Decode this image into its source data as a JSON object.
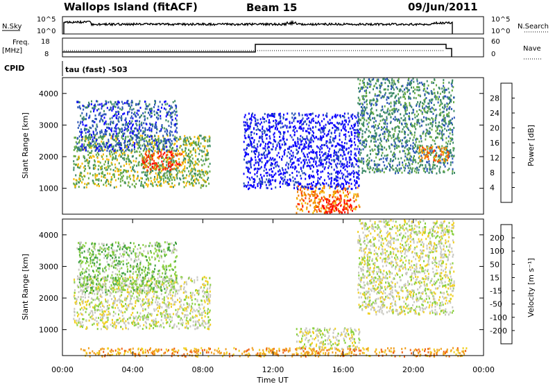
{
  "header": {
    "station": "Wallops Island (fitACF)",
    "beam": "Beam 15",
    "date": "09/Jun/2011"
  },
  "params": {
    "nsky_label": "N.Sky",
    "nsearch_label": "N.Search",
    "nsky_ticks": [
      "10^5",
      "10^0"
    ],
    "nsearch_ticks": [
      "10^5",
      "10^0"
    ],
    "freq_label_top": "Freq.",
    "freq_label_unit": "[MHz]",
    "freq_ticks": [
      "18",
      "8"
    ],
    "nave_label": "Nave",
    "nave_ticks": [
      "60",
      "0"
    ],
    "cpid_label": "CPID",
    "cpid_text": "tau (fast)  -503"
  },
  "colors": {
    "power": [
      "#0a00ff",
      "#2a55b5",
      "#3d8a66",
      "#66aa44",
      "#f5b800",
      "#f08000",
      "#ff3000",
      "#ff0000"
    ],
    "velocity": [
      "#2228b8",
      "#2b6e2e",
      "#40a040",
      "#8ad040",
      "#c8c8c0",
      "#f0d020",
      "#f0a020",
      "#f06010",
      "#ff0000"
    ]
  },
  "chart_data": [
    {
      "type": "heatmap",
      "name": "power",
      "ylabel": "Slant Range [km]",
      "xlabel": "",
      "yticks": [
        "1000",
        "2000",
        "3000",
        "4000"
      ],
      "xlim": [
        0,
        24
      ],
      "ylim": [
        180,
        4500
      ],
      "colorbar_label": "Power [dB]",
      "colorbar_ticks": [
        "4",
        "8",
        "12",
        "16",
        "20",
        "24",
        "28"
      ],
      "regions": [
        {
          "t0": 0.6,
          "t1": 8.4,
          "r0": 1050,
          "r1": 2700,
          "level": 3
        },
        {
          "t0": 0.8,
          "t1": 6.5,
          "r0": 2200,
          "r1": 3800,
          "level": 1
        },
        {
          "t0": 4.5,
          "t1": 6.8,
          "r0": 1600,
          "r1": 2200,
          "level": 6
        },
        {
          "t0": 13.3,
          "t1": 16.9,
          "r0": 250,
          "r1": 1100,
          "level": 5
        },
        {
          "t0": 14.8,
          "t1": 16.5,
          "r0": 250,
          "r1": 700,
          "level": 7
        },
        {
          "t0": 10.3,
          "t1": 16.9,
          "r0": 1000,
          "r1": 3400,
          "level": 0
        },
        {
          "t0": 16.8,
          "t1": 22.3,
          "r0": 1500,
          "r1": 4500,
          "level": 2
        },
        {
          "t0": 20.3,
          "t1": 22.0,
          "r0": 1850,
          "r1": 2350,
          "level": 5
        }
      ]
    },
    {
      "type": "heatmap",
      "name": "velocity",
      "ylabel": "Slant Range [km]",
      "xlabel": "Time UT",
      "yticks": [
        "1000",
        "2000",
        "3000",
        "4000"
      ],
      "xticks": [
        "00:00",
        "04:00",
        "08:00",
        "12:00",
        "16:00",
        "20:00",
        "00:00"
      ],
      "xlim": [
        0,
        24
      ],
      "ylim": [
        180,
        4500
      ],
      "colorbar_label": "Velocity [m s⁻¹]",
      "colorbar_ticks": [
        "200",
        "100",
        "50",
        "15",
        "-15",
        "-50",
        "-100",
        "-200"
      ],
      "regions": [
        {
          "t0": 0.6,
          "t1": 8.4,
          "r0": 1050,
          "r1": 2700,
          "level": 4
        },
        {
          "t0": 0.8,
          "t1": 6.5,
          "r0": 2200,
          "r1": 3800,
          "level": 3
        },
        {
          "t0": 13.3,
          "t1": 16.9,
          "r0": 400,
          "r1": 1100,
          "level": 4
        },
        {
          "t0": 1.0,
          "t1": 23.0,
          "r0": 180,
          "r1": 450,
          "level": 6
        },
        {
          "t0": 16.8,
          "t1": 22.3,
          "r0": 1500,
          "r1": 4500,
          "level": 4
        }
      ]
    }
  ]
}
